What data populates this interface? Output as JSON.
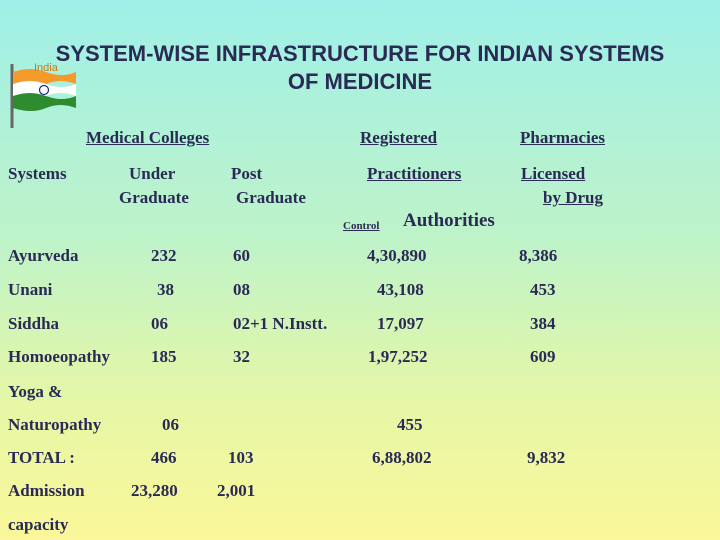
{
  "title_line1": "SYSTEM-WISE INFRASTRUCTURE FOR INDIAN SYSTEMS",
  "title_line2": "OF MEDICINE",
  "flag_label": "India",
  "headers": {
    "medical_colleges": "Medical Colleges",
    "registered": "Registered",
    "pharmacies": "Pharmacies",
    "systems": "Systems",
    "under_graduate_1": "Under",
    "under_graduate_2": "Graduate",
    "post_graduate_1": "Post",
    "post_graduate_2": "Graduate",
    "practitioners": "Practitioners",
    "licensed_1": "Licensed",
    "licensed_2": "by Drug",
    "control": "Control",
    "authorities": "Authorities"
  },
  "rows": [
    {
      "system": "Ayurveda",
      "ug": "232",
      "pg": "60",
      "practitioners": "4,30,890",
      "pharmacies": "8,386"
    },
    {
      "system": "Unani",
      "ug": "38",
      "pg": "08",
      "practitioners": "43,108",
      "pharmacies": "453"
    },
    {
      "system": "Siddha",
      "ug": "06",
      "pg": "02+1 N.Instt.",
      "practitioners": "17,097",
      "pharmacies": "384"
    },
    {
      "system": "Homoeopathy",
      "ug": "185",
      "pg": "32",
      "practitioners": "1,97,252",
      "pharmacies": "609"
    },
    {
      "system_line1": "Yoga &",
      "system_line2": "Naturopathy",
      "ug": "06",
      "practitioners": "455"
    },
    {
      "system": "TOTAL :",
      "ug": "466",
      "pg": "103",
      "practitioners": "6,88,802",
      "pharmacies": "9,832"
    },
    {
      "system_line1": "Admission",
      "system_line2": "capacity",
      "ug": "23,280",
      "pg": "2,001"
    }
  ]
}
